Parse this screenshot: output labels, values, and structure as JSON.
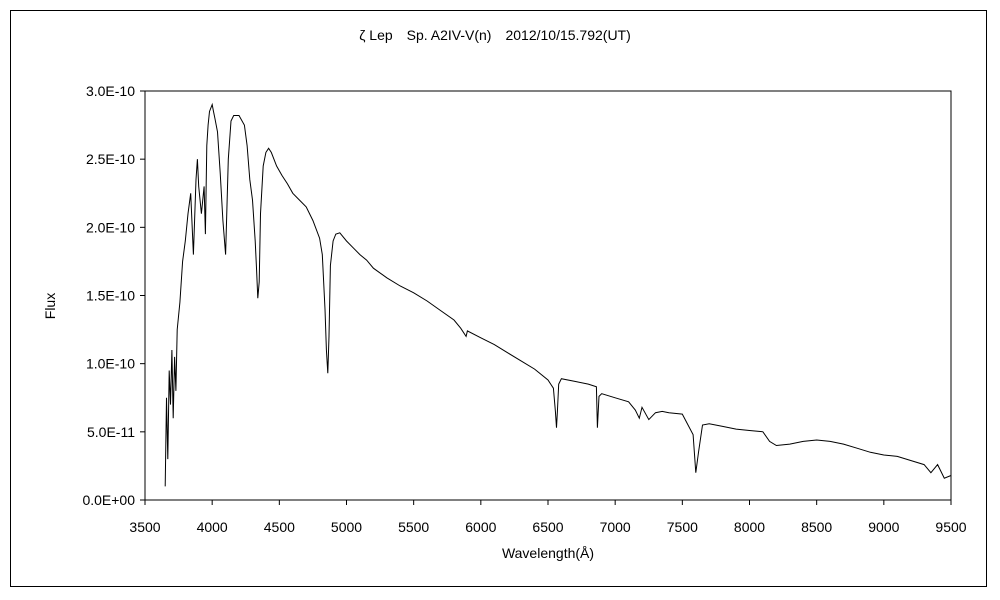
{
  "chart_data": {
    "type": "line",
    "title": "ζ Lep　Sp. A2IV-V(n)　2012/10/15.792(UT)",
    "xlabel": "Wavelength(Å)",
    "ylabel": "Flux",
    "xlim": [
      3500,
      9500
    ],
    "ylim": [
      0,
      3e-10
    ],
    "x_ticks": [
      3500,
      4000,
      4500,
      5000,
      5500,
      6000,
      6500,
      7000,
      7500,
      8000,
      8500,
      9000,
      9500
    ],
    "x_tick_labels": [
      "3500",
      "4000",
      "4500",
      "5000",
      "5500",
      "6000",
      "6500",
      "7000",
      "7500",
      "8000",
      "8500",
      "9000",
      "9500"
    ],
    "y_ticks": [
      0,
      5e-11,
      1e-10,
      1.5e-10,
      2e-10,
      2.5e-10,
      3e-10
    ],
    "y_tick_labels": [
      "0.0E+00",
      "5.0E-11",
      "1.0E-10",
      "1.5E-10",
      "2.0E-10",
      "2.5E-10",
      "3.0E-10"
    ],
    "grid": false,
    "legend": "none",
    "line_color": "#000000",
    "series": [
      {
        "x": [
          3650,
          3660,
          3670,
          3680,
          3690,
          3700,
          3710,
          3720,
          3730,
          3740,
          3760,
          3780,
          3800,
          3820,
          3840,
          3860,
          3880,
          3890,
          3900,
          3920,
          3940,
          3950,
          3960,
          3970,
          3980,
          4000,
          4010,
          4020,
          4040,
          4060,
          4080,
          4100,
          4120,
          4140,
          4160,
          4200,
          4240,
          4260,
          4280,
          4300,
          4320,
          4330,
          4340,
          4350,
          4360,
          4380,
          4400,
          4420,
          4440,
          4480,
          4520,
          4560,
          4600,
          4650,
          4700,
          4750,
          4800,
          4820,
          4840,
          4850,
          4861,
          4870,
          4880,
          4900,
          4920,
          4950,
          5000,
          5050,
          5100,
          5150,
          5200,
          5300,
          5400,
          5500,
          5600,
          5700,
          5800,
          5850,
          5890,
          5900,
          6000,
          6100,
          6200,
          6300,
          6400,
          6500,
          6520,
          6540,
          6555,
          6563,
          6570,
          6580,
          6600,
          6700,
          6800,
          6860,
          6868,
          6880,
          6900,
          7000,
          7100,
          7150,
          7180,
          7200,
          7250,
          7300,
          7350,
          7400,
          7500,
          7580,
          7600,
          7620,
          7650,
          7700,
          7800,
          7900,
          8000,
          8100,
          8150,
          8200,
          8300,
          8400,
          8500,
          8600,
          8700,
          8800,
          8900,
          9000,
          9100,
          9200,
          9300,
          9350,
          9400,
          9450,
          9500
        ],
        "y": [
          1e-11,
          7.5e-11,
          3e-11,
          9.5e-11,
          7e-11,
          1.1e-10,
          6e-11,
          1.05e-10,
          8e-11,
          1.25e-10,
          1.45e-10,
          1.75e-10,
          1.9e-10,
          2.1e-10,
          2.25e-10,
          1.8e-10,
          2.35e-10,
          2.5e-10,
          2.3e-10,
          2.1e-10,
          2.3e-10,
          1.95e-10,
          2.6e-10,
          2.75e-10,
          2.85e-10,
          2.9e-10,
          2.85e-10,
          2.8e-10,
          2.7e-10,
          2.4e-10,
          2.05e-10,
          1.8e-10,
          2.5e-10,
          2.78e-10,
          2.82e-10,
          2.82e-10,
          2.75e-10,
          2.6e-10,
          2.35e-10,
          2.2e-10,
          1.9e-10,
          1.7e-10,
          1.48e-10,
          1.6e-10,
          2.1e-10,
          2.45e-10,
          2.55e-10,
          2.58e-10,
          2.55e-10,
          2.45e-10,
          2.38e-10,
          2.32e-10,
          2.25e-10,
          2.2e-10,
          2.15e-10,
          2.05e-10,
          1.92e-10,
          1.8e-10,
          1.4e-10,
          1.1e-10,
          9.3e-11,
          1.2e-10,
          1.72e-10,
          1.9e-10,
          1.95e-10,
          1.96e-10,
          1.9e-10,
          1.85e-10,
          1.8e-10,
          1.76e-10,
          1.7e-10,
          1.63e-10,
          1.57e-10,
          1.52e-10,
          1.46e-10,
          1.39e-10,
          1.32e-10,
          1.26e-10,
          1.2e-10,
          1.24e-10,
          1.19e-10,
          1.14e-10,
          1.08e-10,
          1.02e-10,
          9.6e-11,
          8.8e-11,
          8.5e-11,
          8.2e-11,
          6.5e-11,
          5.3e-11,
          6.5e-11,
          8.5e-11,
          8.9e-11,
          8.7e-11,
          8.5e-11,
          8.3e-11,
          5.3e-11,
          7.6e-11,
          7.8e-11,
          7.5e-11,
          7.2e-11,
          6.6e-11,
          6e-11,
          6.8e-11,
          5.9e-11,
          6.4e-11,
          6.5e-11,
          6.4e-11,
          6.3e-11,
          4.8e-11,
          2e-11,
          3.5e-11,
          5.5e-11,
          5.6e-11,
          5.4e-11,
          5.2e-11,
          5.1e-11,
          5e-11,
          4.3e-11,
          4e-11,
          4.1e-11,
          4.3e-11,
          4.4e-11,
          4.3e-11,
          4.1e-11,
          3.8e-11,
          3.5e-11,
          3.3e-11,
          3.2e-11,
          2.9e-11,
          2.6e-11,
          2e-11,
          2.6e-11,
          1.6e-11,
          1.8e-11
        ]
      }
    ]
  }
}
